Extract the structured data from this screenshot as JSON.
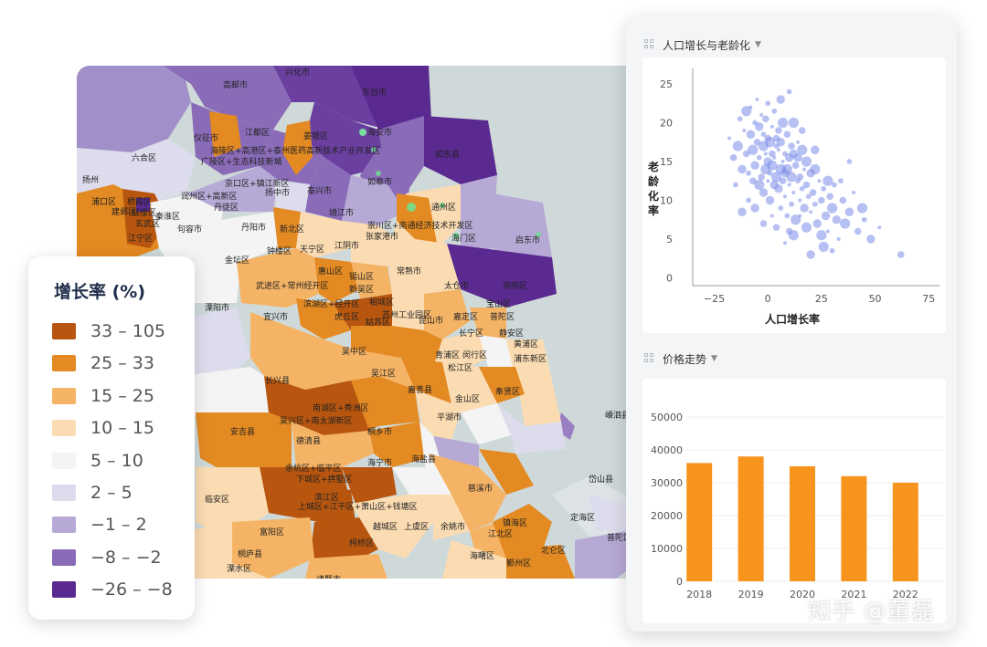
{
  "legend": {
    "title": "增长率 (%)",
    "items": [
      {
        "label": "33 – 105",
        "color": "#b8560f"
      },
      {
        "label": "25 – 33",
        "color": "#e48a22"
      },
      {
        "label": "15 – 25",
        "color": "#f5b465"
      },
      {
        "label": "10 – 15",
        "color": "#fbdcb2"
      },
      {
        "label": "5 – 10",
        "color": "#f4f4f4"
      },
      {
        "label": "2 – 5",
        "color": "#dcdcec"
      },
      {
        "label": "−1 – 2",
        "color": "#b7a9d6"
      },
      {
        "label": "−8 – −2",
        "color": "#8a6bb8"
      },
      {
        "label": "−26 – −8",
        "color": "#5a2a90"
      }
    ]
  },
  "map": {
    "labels": [
      "高邮市",
      "兴化市",
      "东台市",
      "六合区",
      "仪征市",
      "江都区",
      "姜堰区",
      "海安市",
      "海陵区+高港区+泰州医药高新技术产业开发区",
      "广陵区+生态科技新城",
      "如皋市",
      "如东县",
      "京口区+镇江新区",
      "扬中市",
      "泰兴市",
      "润州区+高新区",
      "丹徒区",
      "靖江市",
      "通州区",
      "崇川区+南通经济技术开发区",
      "张家港市",
      "海门区",
      "启东市",
      "浦口区",
      "栖霞区",
      "鼓楼区",
      "玄武区",
      "江宁区",
      "句容市",
      "丹阳市",
      "新北区",
      "天宁区",
      "钟楼区",
      "江阴市",
      "金坛区",
      "武进区+常州经开区",
      "惠山区",
      "锡山区",
      "新吴区",
      "常熟市",
      "太仓市",
      "崇明区",
      "滨湖区+经开区",
      "相城区",
      "虎丘区",
      "姑苏区",
      "苏州工业园区",
      "昆山市",
      "嘉定区",
      "宝山区",
      "普陀区",
      "长宁区",
      "静安区",
      "黄浦区",
      "浦东新区",
      "闵行区",
      "溧阳市",
      "宜兴市",
      "吴中区",
      "青浦区",
      "吴江区",
      "松江区",
      "长兴县",
      "嘉善县",
      "金山区",
      "奉贤区",
      "平湖市",
      "安吉县",
      "吴兴区+南太湖新区",
      "南湖区+秀洲区",
      "桐乡市",
      "德清县",
      "海盐县",
      "余杭区+临平区",
      "下城区+拱墅区",
      "海宁市",
      "滨江区",
      "慈溪市",
      "临安区",
      "上城区+江干区+萧山区+钱塘区",
      "富阳区",
      "越城区",
      "上虞区",
      "余姚市",
      "镇海区",
      "北仑区",
      "江北区",
      "桐庐县",
      "柯桥区",
      "海曙区",
      "鄞州区",
      "嵊泗县",
      "岱山县",
      "定海区",
      "普陀区",
      "诸暨市",
      "溧水区",
      "建邺区",
      "秦淮区",
      "扬州"
    ]
  },
  "scatter_panel": {
    "title": "人口增长与老龄化",
    "ylabel_chars": [
      "老",
      "龄",
      "化",
      "率"
    ]
  },
  "bar_panel": {
    "title": "价格走势"
  },
  "chart_data": [
    {
      "type": "scatter",
      "title": "",
      "xlabel": "人口增长率",
      "ylabel": "老龄化率",
      "xlim": [
        -35,
        80
      ],
      "ylim": [
        -1,
        27
      ],
      "xticks": [
        -25,
        0,
        25,
        50,
        75
      ],
      "yticks": [
        0,
        5,
        10,
        15,
        20,
        25
      ],
      "color": "#7b8ce8",
      "points": [
        [
          -18,
          18
        ],
        [
          -16,
          15.5
        ],
        [
          -14,
          17
        ],
        [
          -13,
          20.5
        ],
        [
          -12,
          14
        ],
        [
          -11,
          19
        ],
        [
          -10,
          16
        ],
        [
          -10,
          21.5
        ],
        [
          -9,
          13.5
        ],
        [
          -8,
          18.5
        ],
        [
          -8,
          22
        ],
        [
          -7,
          12.5
        ],
        [
          -7,
          16.5
        ],
        [
          -6,
          20
        ],
        [
          -6,
          14.5
        ],
        [
          -5,
          23
        ],
        [
          -5,
          17.5
        ],
        [
          -4,
          12
        ],
        [
          -4,
          15.5
        ],
        [
          -4,
          19.5
        ],
        [
          -3,
          21
        ],
        [
          -3,
          13
        ],
        [
          -2,
          17
        ],
        [
          -2,
          18.5
        ],
        [
          -2,
          11
        ],
        [
          -1,
          16
        ],
        [
          -1,
          20.5
        ],
        [
          -1,
          14
        ],
        [
          0,
          22.5
        ],
        [
          0,
          15
        ],
        [
          0,
          12.5
        ],
        [
          0,
          18
        ],
        [
          1,
          17.5
        ],
        [
          1,
          13.5
        ],
        [
          1,
          10
        ],
        [
          2,
          19.5
        ],
        [
          2,
          16
        ],
        [
          2,
          14.5
        ],
        [
          3,
          21.5
        ],
        [
          3,
          12
        ],
        [
          3,
          15.5
        ],
        [
          4,
          18
        ],
        [
          4,
          13
        ],
        [
          4,
          17
        ],
        [
          5,
          11.5
        ],
        [
          5,
          16.5
        ],
        [
          5,
          19
        ],
        [
          6,
          14
        ],
        [
          6,
          9
        ],
        [
          6,
          17.5
        ],
        [
          7,
          15
        ],
        [
          7,
          12.5
        ],
        [
          7,
          20
        ],
        [
          8,
          16
        ],
        [
          8,
          13.5
        ],
        [
          8,
          10.5
        ],
        [
          9,
          18.5
        ],
        [
          9,
          14
        ],
        [
          9,
          8
        ],
        [
          10,
          15.5
        ],
        [
          10,
          12
        ],
        [
          11,
          17
        ],
        [
          11,
          13
        ],
        [
          11,
          9.5
        ],
        [
          12,
          16
        ],
        [
          12,
          11
        ],
        [
          13,
          14.5
        ],
        [
          13,
          7.5
        ],
        [
          14,
          12.5
        ],
        [
          14,
          15.5
        ],
        [
          15,
          10
        ],
        [
          15,
          13
        ],
        [
          16,
          16.5
        ],
        [
          16,
          11.5
        ],
        [
          17,
          9
        ],
        [
          17,
          14
        ],
        [
          18,
          12
        ],
        [
          18,
          6.5
        ],
        [
          19,
          10.5
        ],
        [
          20,
          13.5
        ],
        [
          20,
          8.5
        ],
        [
          21,
          11
        ],
        [
          22,
          14
        ],
        [
          22,
          9.5
        ],
        [
          23,
          7
        ],
        [
          24,
          12.5
        ],
        [
          25,
          10
        ],
        [
          25,
          5.5
        ],
        [
          26,
          11.5
        ],
        [
          27,
          8
        ],
        [
          28,
          6
        ],
        [
          29,
          10.5
        ],
        [
          30,
          9
        ],
        [
          31,
          12
        ],
        [
          32,
          7.5
        ],
        [
          33,
          5
        ],
        [
          35,
          10
        ],
        [
          36,
          7
        ],
        [
          38,
          15
        ],
        [
          38,
          8.5
        ],
        [
          40,
          11
        ],
        [
          42,
          6
        ],
        [
          44,
          9
        ],
        [
          45,
          7.5
        ],
        [
          48,
          5
        ],
        [
          52,
          6.5
        ],
        [
          62,
          3
        ],
        [
          12,
          20
        ],
        [
          10,
          24
        ],
        [
          6,
          23
        ],
        [
          14,
          17.5
        ],
        [
          16,
          19
        ],
        [
          18,
          15
        ],
        [
          -9,
          10
        ],
        [
          -6,
          9
        ],
        [
          2,
          8
        ],
        [
          4,
          6.5
        ],
        [
          26,
          4
        ],
        [
          30,
          3.5
        ],
        [
          20,
          3
        ],
        [
          8,
          4.5
        ],
        [
          -2,
          7
        ],
        [
          12,
          5.5
        ],
        [
          34,
          12.5
        ],
        [
          22,
          16.5
        ],
        [
          15,
          8
        ],
        [
          10,
          6
        ],
        [
          28,
          12.5
        ],
        [
          -15,
          12
        ],
        [
          -12,
          8.5
        ]
      ]
    },
    {
      "type": "bar",
      "title": "",
      "xlabel": "",
      "ylabel": "",
      "categories": [
        "2018",
        "2019",
        "2020",
        "2021",
        "2022"
      ],
      "values": [
        36000,
        38000,
        35000,
        32000,
        30000
      ],
      "ylim": [
        0,
        50000
      ],
      "yticks": [
        0,
        10000,
        20000,
        30000,
        40000,
        50000
      ],
      "color": "#f7941d"
    }
  ],
  "watermark": "知乎 @董磊"
}
